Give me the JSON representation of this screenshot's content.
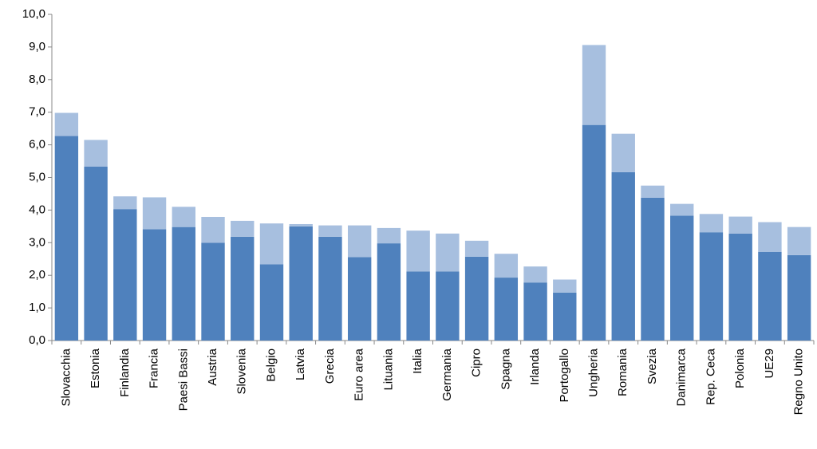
{
  "chart_data": {
    "type": "stacked-bar",
    "categories": [
      "Slovacchia",
      "Estonia",
      "Finlandia",
      "Francia",
      "Paesi Bassi",
      "Austria",
      "Slovenia",
      "Belgio",
      "Latvia",
      "Grecia",
      "Euro area",
      "Lituania",
      "Italia",
      "Germania",
      "Cipro",
      "Spagna",
      "Irlanda",
      "Portogallo",
      "Ungheria",
      "Romania",
      "Svezia",
      "Danimarca",
      "Rep. Ceca",
      "Polonia",
      "UE29",
      "Regno Unito"
    ],
    "series": [
      {
        "color": "#4f81bd",
        "values": [
          6.27,
          5.33,
          4.03,
          3.41,
          3.48,
          3.0,
          3.18,
          2.34,
          3.5,
          3.18,
          2.56,
          2.98,
          2.12,
          2.12,
          2.57,
          1.93,
          1.78,
          1.47,
          6.61,
          5.16,
          4.38,
          3.83,
          3.32,
          3.28,
          2.72,
          2.62
        ]
      },
      {
        "color": "#a7bfdf",
        "values": [
          0.71,
          0.82,
          0.39,
          0.98,
          0.62,
          0.79,
          0.49,
          1.25,
          0.07,
          0.35,
          0.97,
          0.47,
          1.25,
          1.16,
          0.49,
          0.73,
          0.49,
          0.4,
          2.45,
          1.18,
          0.37,
          0.36,
          0.56,
          0.52,
          0.91,
          0.86
        ]
      }
    ],
    "ylim": [
      0,
      10
    ],
    "yticks": [
      {
        "value": 0,
        "label": "0,0"
      },
      {
        "value": 1,
        "label": "1,0"
      },
      {
        "value": 2,
        "label": "2,0"
      },
      {
        "value": 3,
        "label": "3,0"
      },
      {
        "value": 4,
        "label": "4,0"
      },
      {
        "value": 5,
        "label": "5,0"
      },
      {
        "value": 6,
        "label": "6,0"
      },
      {
        "value": 7,
        "label": "7,0"
      },
      {
        "value": 8,
        "label": "8,0"
      },
      {
        "value": 9,
        "label": "9,0"
      },
      {
        "value": 10,
        "label": "10,0"
      }
    ],
    "grid": false
  }
}
